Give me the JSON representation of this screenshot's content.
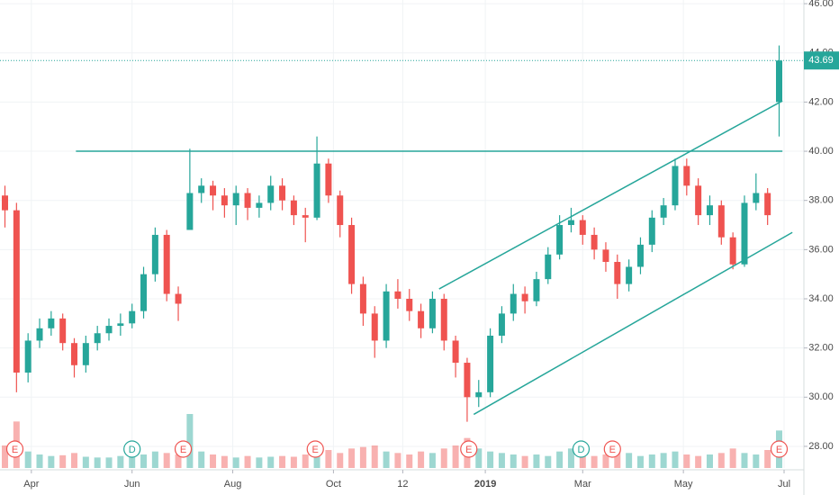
{
  "chart_data": {
    "type": "candlestick",
    "x": [
      3,
      10,
      17,
      24,
      31,
      38,
      45,
      52,
      59,
      66,
      73,
      80,
      87,
      94,
      101,
      108,
      115,
      122,
      129,
      136,
      143,
      150,
      157,
      164,
      171,
      178,
      185,
      192,
      199,
      206,
      213,
      220,
      227,
      234,
      241,
      248,
      255,
      262,
      269,
      276,
      283,
      290,
      297,
      304,
      311,
      318,
      325,
      332,
      339,
      346,
      353,
      360,
      367,
      374,
      381,
      388,
      395,
      402,
      409,
      416,
      423,
      430,
      437,
      444,
      451,
      458,
      465,
      472
    ],
    "open": [
      38.2,
      37.6,
      31.0,
      32.3,
      32.8,
      33.2,
      32.2,
      31.3,
      32.2,
      32.6,
      32.9,
      33.0,
      33.5,
      35.0,
      36.6,
      34.2,
      36.8,
      38.3,
      38.6,
      38.2,
      37.8,
      38.3,
      37.7,
      37.9,
      38.6,
      38.0,
      37.4,
      37.3,
      39.5,
      38.2,
      37.0,
      34.6,
      33.4,
      32.3,
      34.3,
      34.0,
      33.5,
      32.8,
      34.0,
      32.3,
      31.4,
      30.0,
      30.2,
      32.5,
      33.4,
      34.2,
      33.9,
      34.8,
      35.8,
      37.0,
      37.2,
      36.6,
      36.0,
      35.5,
      34.6,
      35.3,
      36.2,
      37.3,
      37.8,
      39.4,
      38.6,
      37.4,
      37.8,
      36.5,
      35.4,
      37.9,
      38.3,
      42.0
    ],
    "high": [
      38.6,
      37.9,
      32.6,
      33.2,
      33.5,
      33.4,
      32.4,
      32.5,
      32.9,
      33.2,
      33.4,
      33.8,
      35.3,
      36.9,
      36.8,
      34.5,
      40.1,
      38.9,
      38.8,
      38.5,
      38.6,
      38.5,
      38.2,
      39.0,
      38.9,
      38.2,
      37.7,
      40.6,
      39.7,
      38.4,
      37.3,
      34.9,
      33.7,
      34.6,
      34.8,
      34.4,
      33.8,
      34.3,
      34.2,
      32.5,
      31.6,
      30.7,
      32.8,
      33.7,
      34.6,
      34.5,
      35.1,
      36.1,
      37.4,
      37.7,
      37.4,
      36.9,
      36.3,
      35.8,
      35.6,
      36.5,
      37.6,
      38.1,
      39.7,
      39.7,
      38.9,
      38.2,
      38.0,
      36.7,
      38.2,
      39.1,
      38.5,
      44.3
    ],
    "low": [
      36.9,
      30.2,
      30.6,
      32.0,
      32.5,
      31.9,
      30.8,
      31.0,
      31.9,
      32.3,
      32.5,
      32.8,
      33.2,
      34.7,
      33.9,
      33.1,
      36.8,
      37.9,
      37.6,
      37.3,
      37.0,
      37.2,
      37.3,
      37.6,
      37.6,
      37.0,
      36.3,
      37.2,
      37.9,
      36.5,
      34.2,
      32.9,
      31.6,
      32.0,
      33.6,
      33.1,
      32.4,
      32.6,
      31.9,
      30.8,
      29.0,
      29.6,
      30.0,
      32.2,
      33.1,
      33.4,
      33.7,
      34.6,
      35.6,
      36.7,
      36.2,
      35.6,
      35.1,
      34.0,
      34.3,
      35.0,
      35.9,
      37.0,
      37.6,
      38.2,
      37.0,
      37.0,
      36.2,
      35.2,
      35.3,
      37.6,
      37.0,
      40.6
    ],
    "close": [
      37.6,
      31.0,
      32.3,
      32.8,
      33.2,
      32.2,
      31.3,
      32.2,
      32.6,
      32.9,
      33.0,
      33.5,
      35.0,
      36.6,
      34.2,
      33.8,
      38.3,
      38.6,
      38.2,
      37.8,
      38.3,
      37.7,
      37.9,
      38.6,
      38.0,
      37.4,
      37.3,
      39.5,
      38.2,
      37.0,
      34.6,
      33.4,
      32.3,
      34.3,
      34.0,
      33.5,
      32.8,
      34.0,
      32.3,
      31.4,
      30.0,
      30.2,
      32.5,
      33.4,
      34.2,
      33.9,
      34.8,
      35.8,
      37.0,
      37.2,
      36.6,
      36.0,
      35.5,
      34.6,
      35.3,
      36.2,
      37.3,
      37.8,
      39.4,
      38.6,
      37.4,
      37.8,
      36.5,
      35.4,
      37.9,
      38.3,
      37.4,
      43.69
    ],
    "volume": [
      30,
      62,
      22,
      18,
      16,
      17,
      20,
      15,
      14,
      14,
      16,
      15,
      18,
      22,
      20,
      18,
      72,
      22,
      18,
      16,
      14,
      16,
      14,
      15,
      16,
      15,
      18,
      34,
      24,
      20,
      26,
      28,
      30,
      22,
      20,
      18,
      22,
      20,
      26,
      30,
      40,
      26,
      22,
      20,
      18,
      16,
      18,
      16,
      22,
      26,
      18,
      16,
      18,
      24,
      20,
      16,
      18,
      20,
      22,
      18,
      16,
      18,
      20,
      26,
      20,
      18,
      24,
      50
    ],
    "up_color": "#26a69a",
    "down_color": "#ef5350",
    "xlim": [
      0,
      487
    ],
    "ylim": [
      27.12,
      46.15
    ],
    "xticks": [
      {
        "value": 19,
        "label": "Apr"
      },
      {
        "value": 80,
        "label": "Jun"
      },
      {
        "value": 141,
        "label": "Aug"
      },
      {
        "value": 202,
        "label": "Oct"
      },
      {
        "value": 244,
        "label": "12"
      },
      {
        "value": 294,
        "label": "2019",
        "bold": true
      },
      {
        "value": 353,
        "label": "Mar"
      },
      {
        "value": 414,
        "label": "May"
      },
      {
        "value": 475,
        "label": "Jul"
      }
    ],
    "yticks": [
      {
        "value": 28,
        "label": "28.00"
      },
      {
        "value": 30,
        "label": "30.00"
      },
      {
        "value": 32,
        "label": "32.00"
      },
      {
        "value": 34,
        "label": "34.00"
      },
      {
        "value": 36,
        "label": "36.00"
      },
      {
        "value": 38,
        "label": "38.00"
      },
      {
        "value": 40,
        "label": "40.00"
      },
      {
        "value": 42,
        "label": "42.00"
      },
      {
        "value": 44,
        "label": "44.00"
      },
      {
        "value": 46,
        "label": "46.00"
      }
    ],
    "grid": true,
    "last_price": 43.69,
    "trend_lines": [
      {
        "x": [
          46,
          474
        ],
        "y": [
          40.0,
          40.0
        ]
      },
      {
        "x": [
          266,
          474
        ],
        "y": [
          34.4,
          42.05
        ]
      },
      {
        "x": [
          287,
          480
        ],
        "y": [
          29.3,
          36.7
        ]
      }
    ],
    "trend_color": "#26a69a",
    "events": [
      {
        "x": 9,
        "label": "E",
        "color": "#ef5350"
      },
      {
        "x": 80,
        "label": "D",
        "color": "#26a69a"
      },
      {
        "x": 111,
        "label": "E",
        "color": "#ef5350"
      },
      {
        "x": 191,
        "label": "E",
        "color": "#ef5350"
      },
      {
        "x": 284,
        "label": "E",
        "color": "#ef5350"
      },
      {
        "x": 352,
        "label": "D",
        "color": "#26a69a"
      },
      {
        "x": 371,
        "label": "E",
        "color": "#ef5350"
      },
      {
        "x": 472,
        "label": "E",
        "color": "#ef5350"
      }
    ]
  }
}
